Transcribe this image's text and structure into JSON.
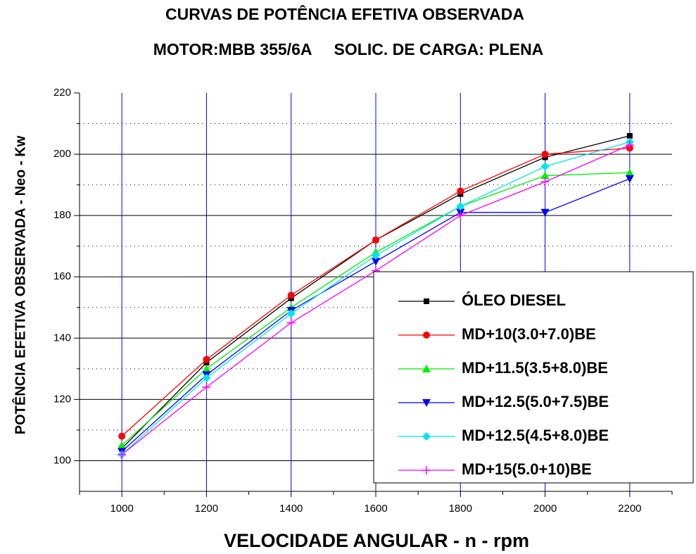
{
  "chart_data": {
    "type": "line",
    "title": "CURVAS DE POTÊNCIA EFETIVA OBSERVADA",
    "subtitle": "MOTOR:MBB 355/6A     SOLIC. DE CARGA: PLENA",
    "xlabel": "VELOCIDADE ANGULAR - n - rpm",
    "ylabel": "POTÊNCIA EFETIVA OBSERVADA - Neo - Kw",
    "x": [
      1000,
      1200,
      1400,
      1600,
      1800,
      2000,
      2200
    ],
    "xlim": [
      900,
      2300
    ],
    "xticks": [
      1000,
      1200,
      1400,
      1600,
      1800,
      2000,
      2200
    ],
    "x_minor_ticks": [
      900,
      1100,
      1300,
      1500,
      1700,
      1900,
      2100,
      2300
    ],
    "ylim": [
      90,
      220
    ],
    "yticks": [
      100,
      120,
      140,
      160,
      180,
      200,
      220
    ],
    "y_minor_ticks": [
      110,
      130,
      150,
      170,
      190,
      210
    ],
    "grid": true,
    "legend": "lower right",
    "series": [
      {
        "name": "ÓLEO DIESEL",
        "color": "#000000",
        "marker": "square",
        "values": [
          104,
          132,
          153,
          172,
          187,
          199,
          206
        ]
      },
      {
        "name": "MD+10(3.0+7.0)BE",
        "color": "#ff0000",
        "marker": "circle",
        "values": [
          108,
          133,
          154,
          172,
          188,
          200,
          202
        ]
      },
      {
        "name": "MD+11.5(3.5+8.0)BE",
        "color": "#00ee00",
        "marker": "triangle-up",
        "values": [
          105,
          130,
          150,
          168,
          183,
          193,
          194
        ]
      },
      {
        "name": "MD+12.5(5.0+7.5)BE",
        "color": "#0000ff",
        "marker": "triangle-down",
        "values": [
          103,
          128,
          149,
          165,
          181,
          181,
          192
        ]
      },
      {
        "name": "MD+12.5(4.5+8.0)BE",
        "color": "#00e5ee",
        "marker": "diamond",
        "values": [
          102,
          127,
          148,
          167,
          183,
          196,
          204
        ]
      },
      {
        "name": "MD+15(5.0+10)BE",
        "color": "#ff00ff",
        "marker": "plus",
        "values": [
          102,
          124,
          145,
          162,
          180,
          191,
          203
        ]
      }
    ]
  }
}
